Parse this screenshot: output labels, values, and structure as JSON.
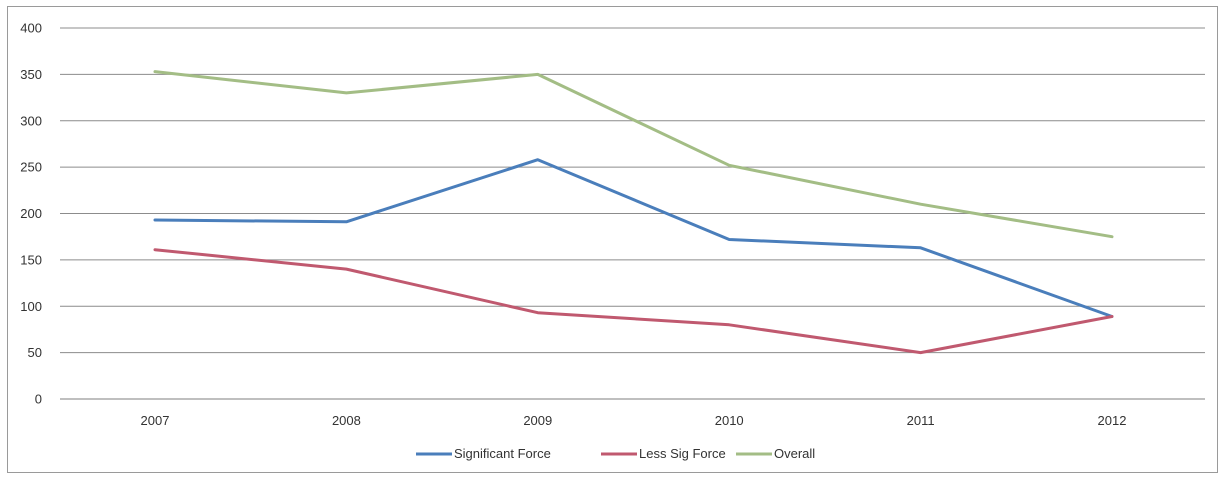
{
  "chart_data": {
    "type": "line",
    "title": "",
    "xlabel": "",
    "ylabel": "",
    "categories": [
      "2007",
      "2008",
      "2009",
      "2010",
      "2011",
      "2012"
    ],
    "ylim": [
      0,
      400
    ],
    "yticks": [
      0,
      50,
      100,
      150,
      200,
      250,
      300,
      350,
      400
    ],
    "grid": true,
    "legend": "bottom",
    "series": [
      {
        "name": "Significant Force",
        "color": "#4a7ebb",
        "values": [
          193,
          191,
          258,
          172,
          163,
          89
        ]
      },
      {
        "name": "Less Sig Force",
        "color": "#c0596f",
        "values": [
          161,
          140,
          93,
          80,
          50,
          89
        ]
      },
      {
        "name": "Overall",
        "color": "#a3bd85",
        "values": [
          353,
          330,
          350,
          252,
          210,
          175
        ]
      }
    ]
  }
}
